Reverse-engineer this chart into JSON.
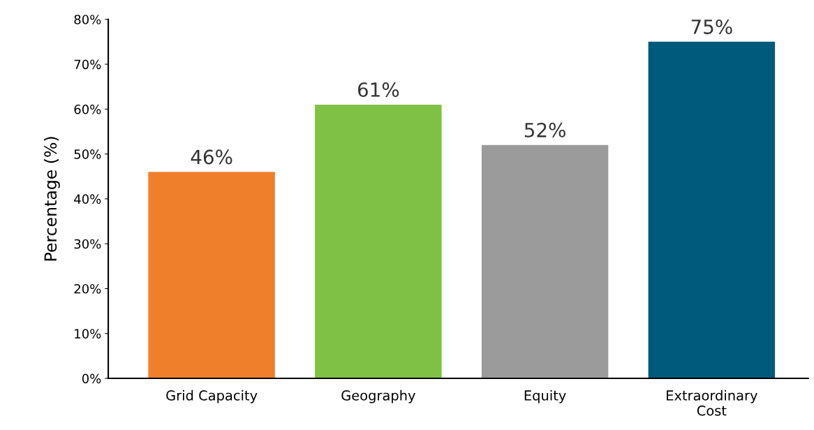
{
  "chart_data": {
    "type": "bar",
    "ylabel": "Percentage (%)",
    "categories": [
      "Grid Capacity",
      "Geography",
      "Equity",
      "Extraordinary\nCost"
    ],
    "values": [
      46,
      61,
      52,
      75
    ],
    "colors": [
      "#f07f2c",
      "#7fc144",
      "#9b9b9b",
      "#005a7b"
    ],
    "value_labels": [
      "46%",
      "61%",
      "52%",
      "75%"
    ],
    "ylim": [
      0,
      80
    ],
    "yticks": [
      {
        "value": 0,
        "label": "0%"
      },
      {
        "value": 10,
        "label": "10%"
      },
      {
        "value": 20,
        "label": "20%"
      },
      {
        "value": 30,
        "label": "30%"
      },
      {
        "value": 40,
        "label": "40%"
      },
      {
        "value": 50,
        "label": "50%"
      },
      {
        "value": 60,
        "label": "60%"
      },
      {
        "value": 70,
        "label": "70%"
      },
      {
        "value": 80,
        "label": "80%"
      }
    ],
    "grid": false,
    "legend": false
  }
}
